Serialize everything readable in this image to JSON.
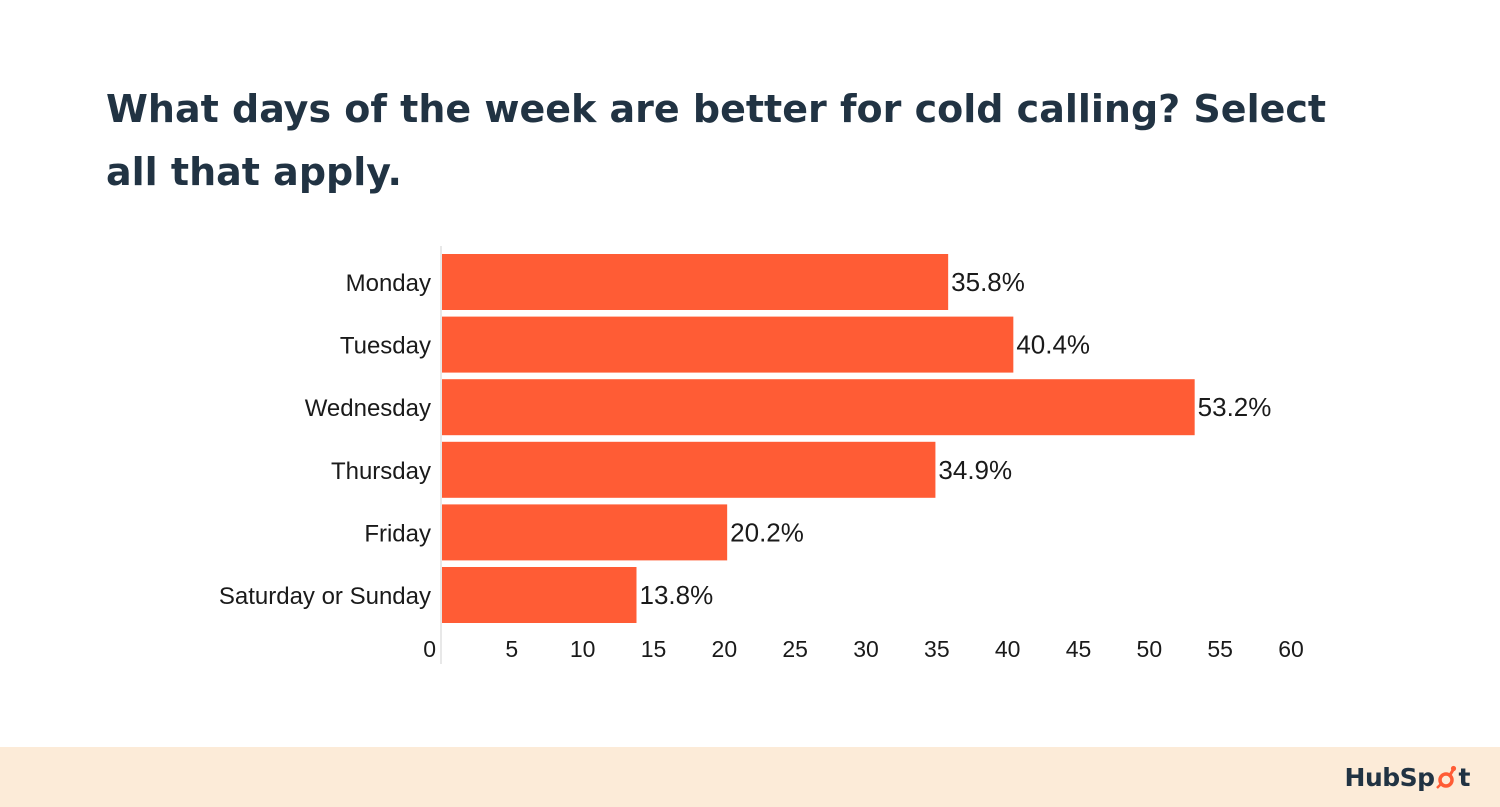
{
  "title": "What days of the week are better for cold calling? Select all that apply.",
  "brand": {
    "logo_text": "HubSpot",
    "accent_color": "#ff5c35",
    "text_color": "#213343",
    "footer_color": "#fcebd8"
  },
  "chart_data": {
    "type": "bar",
    "orientation": "horizontal",
    "categories": [
      "Monday",
      "Tuesday",
      "Wednesday",
      "Thursday",
      "Friday",
      "Saturday or Sunday"
    ],
    "values": [
      35.8,
      40.4,
      53.2,
      34.9,
      20.2,
      13.8
    ],
    "value_labels": [
      "35.8%",
      "40.4%",
      "53.2%",
      "34.9%",
      "20.2%",
      "13.8%"
    ],
    "xlim": [
      0,
      60
    ],
    "xticks": [
      0,
      5,
      10,
      15,
      20,
      25,
      30,
      35,
      40,
      45,
      50,
      55,
      60
    ],
    "xticks_text": [
      "0",
      "5",
      "10",
      "15",
      "20",
      "25",
      "30",
      "35",
      "40",
      "45",
      "50",
      "55",
      "60"
    ],
    "grid": false,
    "bar_color": "#ff5c35"
  }
}
